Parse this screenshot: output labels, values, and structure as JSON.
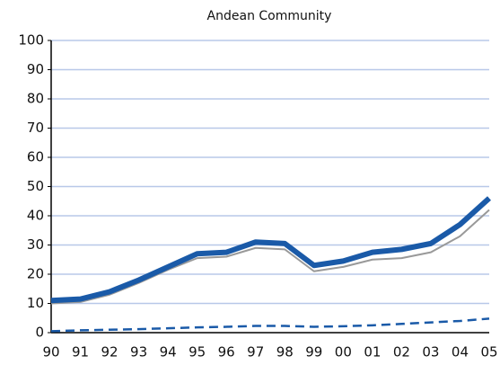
{
  "chart_data": {
    "type": "line",
    "title": "Andean Community",
    "categories": [
      "90",
      "91",
      "92",
      "93",
      "94",
      "95",
      "96",
      "97",
      "98",
      "99",
      "00",
      "01",
      "02",
      "03",
      "04",
      "05"
    ],
    "series": [
      {
        "color": "#999999",
        "width": 2,
        "dashed": false,
        "values": [
          10,
          10.5,
          13,
          17,
          21.5,
          25.5,
          26,
          29,
          28.5,
          21,
          22.5,
          25,
          25.5,
          27.5,
          33,
          42
        ]
      },
      {
        "color": "#1a5aa8",
        "width": 6,
        "dashed": false,
        "values": [
          11,
          11.5,
          14,
          18,
          22.5,
          27,
          27.5,
          31,
          30.5,
          23,
          24.5,
          27.5,
          28.5,
          30.5,
          37,
          46
        ]
      },
      {
        "color": "#1a5aa8",
        "width": 2.5,
        "dashed": true,
        "values": [
          0.5,
          0.8,
          1,
          1.2,
          1.5,
          1.8,
          2,
          2.3,
          2.3,
          2,
          2.2,
          2.5,
          3,
          3.5,
          4,
          4.8
        ]
      }
    ],
    "ylim": [
      0,
      100
    ],
    "yticks": [
      0,
      10,
      20,
      30,
      40,
      50,
      60,
      70,
      80,
      90,
      100
    ],
    "grid": true,
    "grid_color": "#b8c8e8"
  }
}
